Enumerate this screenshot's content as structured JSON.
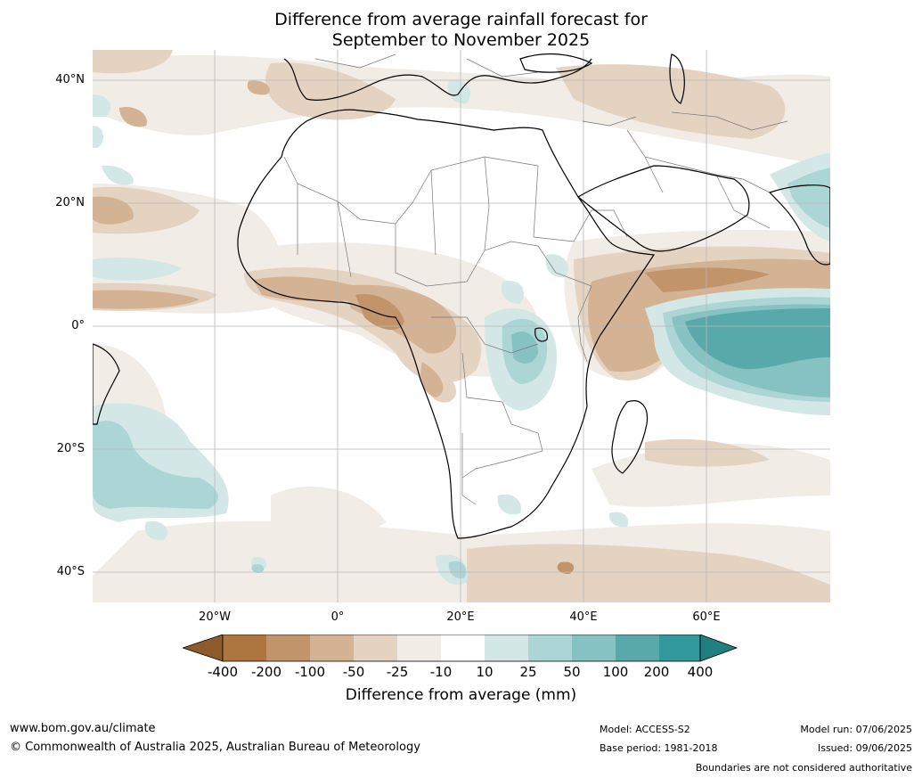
{
  "title": {
    "line1": "Difference from average rainfall forecast for",
    "line2": "September to November 2025"
  },
  "map": {
    "lat_labels": [
      "40°N",
      "20°N",
      "0°",
      "20°S",
      "40°S"
    ],
    "lon_labels": [
      "20°W",
      "0°",
      "20°E",
      "40°E",
      "60°E"
    ]
  },
  "legend": {
    "ticks": [
      "-400",
      "-200",
      "-100",
      "-50",
      "-25",
      "-10",
      "10",
      "25",
      "50",
      "100",
      "200",
      "400"
    ],
    "colors": [
      "#8e5a2c",
      "#ad7540",
      "#c2946a",
      "#d4b394",
      "#e5d3c2",
      "#f1ece6",
      "#ffffff",
      "#d3e8e6",
      "#acd6d5",
      "#86c2c2",
      "#5aa9aa",
      "#31999b",
      "#21807f"
    ],
    "caption": "Difference from average (mm)"
  },
  "footer": {
    "website": "www.bom.gov.au/climate",
    "copyright": "© Commonwealth of Australia 2025, Australian Bureau of Meteorology",
    "model": "Model: ACCESS-S2",
    "base_period": "Base period: 1981-2018",
    "model_run": "Model run: 07/06/2025",
    "issued": "Issued: 09/06/2025",
    "disclaimer": "Boundaries are not considered authoritative"
  }
}
